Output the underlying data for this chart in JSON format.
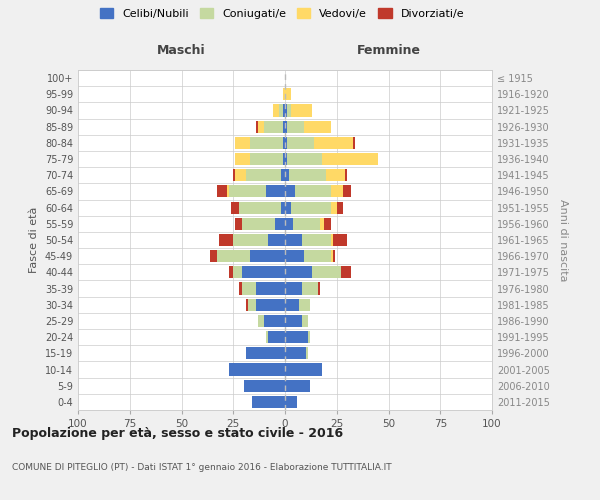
{
  "age_groups": [
    "0-4",
    "5-9",
    "10-14",
    "15-19",
    "20-24",
    "25-29",
    "30-34",
    "35-39",
    "40-44",
    "45-49",
    "50-54",
    "55-59",
    "60-64",
    "65-69",
    "70-74",
    "75-79",
    "80-84",
    "85-89",
    "90-94",
    "95-99",
    "100+"
  ],
  "birth_years": [
    "2011-2015",
    "2006-2010",
    "2001-2005",
    "1996-2000",
    "1991-1995",
    "1986-1990",
    "1981-1985",
    "1976-1980",
    "1971-1975",
    "1966-1970",
    "1961-1965",
    "1956-1960",
    "1951-1955",
    "1946-1950",
    "1941-1945",
    "1936-1940",
    "1931-1935",
    "1926-1930",
    "1921-1925",
    "1916-1920",
    "≤ 1915"
  ],
  "maschi": {
    "celibi": [
      16,
      20,
      27,
      19,
      8,
      10,
      14,
      14,
      21,
      17,
      8,
      5,
      2,
      9,
      2,
      1,
      1,
      1,
      1,
      0,
      0
    ],
    "coniugati": [
      0,
      0,
      0,
      0,
      1,
      3,
      4,
      7,
      4,
      16,
      17,
      16,
      20,
      18,
      17,
      16,
      16,
      9,
      2,
      0,
      0
    ],
    "vedovi": [
      0,
      0,
      0,
      0,
      0,
      0,
      0,
      0,
      0,
      0,
      0,
      0,
      0,
      1,
      5,
      7,
      7,
      3,
      3,
      1,
      0
    ],
    "divorziati": [
      0,
      0,
      0,
      0,
      0,
      0,
      1,
      1,
      2,
      3,
      7,
      3,
      4,
      5,
      1,
      0,
      0,
      1,
      0,
      0,
      0
    ]
  },
  "femmine": {
    "nubili": [
      6,
      12,
      18,
      10,
      11,
      8,
      7,
      8,
      13,
      9,
      8,
      4,
      3,
      5,
      2,
      1,
      1,
      1,
      1,
      0,
      0
    ],
    "coniugate": [
      0,
      0,
      0,
      1,
      1,
      3,
      5,
      8,
      14,
      13,
      14,
      13,
      19,
      17,
      18,
      17,
      13,
      8,
      2,
      0,
      0
    ],
    "vedove": [
      0,
      0,
      0,
      0,
      0,
      0,
      0,
      0,
      0,
      1,
      1,
      2,
      3,
      6,
      9,
      27,
      19,
      13,
      10,
      3,
      0
    ],
    "divorziate": [
      0,
      0,
      0,
      0,
      0,
      0,
      0,
      1,
      5,
      1,
      7,
      3,
      3,
      4,
      1,
      0,
      1,
      0,
      0,
      0,
      0
    ]
  },
  "colors": {
    "celibi": "#4472C4",
    "coniugati": "#c5d9a0",
    "vedovi": "#ffd966",
    "divorziati": "#c0392b"
  },
  "xlim": 100,
  "title_main": "Popolazione per età, sesso e stato civile - 2016",
  "title_sub": "COMUNE DI PITEGLIO (PT) - Dati ISTAT 1° gennaio 2016 - Elaborazione TUTTITALIA.IT",
  "ylabel_left": "Fasce di età",
  "ylabel_right": "Anni di nascita",
  "xlabel_maschi": "Maschi",
  "xlabel_femmine": "Femmine",
  "bg_color": "#f0f0f0",
  "plot_bg": "#ffffff",
  "grid_color": "#cccccc"
}
